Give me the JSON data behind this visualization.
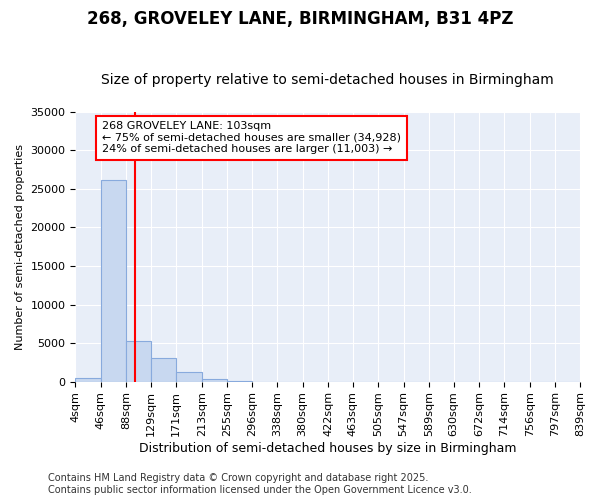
{
  "title1": "268, GROVELEY LANE, BIRMINGHAM, B31 4PZ",
  "title2": "Size of property relative to semi-detached houses in Birmingham",
  "xlabel": "Distribution of semi-detached houses by size in Birmingham",
  "ylabel": "Number of semi-detached properties",
  "bin_edges": [
    4,
    46,
    88,
    129,
    171,
    213,
    255,
    296,
    338,
    380,
    422,
    463,
    505,
    547,
    589,
    630,
    672,
    714,
    756,
    797,
    839
  ],
  "bar_heights": [
    500,
    26100,
    5250,
    3100,
    1200,
    400,
    100,
    0,
    0,
    0,
    0,
    0,
    0,
    0,
    0,
    0,
    0,
    0,
    0,
    0
  ],
  "bar_color": "#c8d8f0",
  "bar_edge_color": "#88aadd",
  "vline_x": 103,
  "vline_color": "red",
  "ylim": [
    0,
    35000
  ],
  "yticks": [
    0,
    5000,
    10000,
    15000,
    20000,
    25000,
    30000,
    35000
  ],
  "annotation_title": "268 GROVELEY LANE: 103sqm",
  "annotation_line1": "← 75% of semi-detached houses are smaller (34,928)",
  "annotation_line2": "24% of semi-detached houses are larger (11,003) →",
  "annotation_border_color": "red",
  "footer1": "Contains HM Land Registry data © Crown copyright and database right 2025.",
  "footer2": "Contains public sector information licensed under the Open Government Licence v3.0.",
  "fig_bg_color": "#ffffff",
  "plot_bg_color": "#e8eef8",
  "grid_color": "#ffffff",
  "title1_fontsize": 12,
  "title2_fontsize": 10,
  "xlabel_fontsize": 9,
  "ylabel_fontsize": 8,
  "tick_fontsize": 8,
  "annotation_fontsize": 8,
  "footer_fontsize": 7
}
